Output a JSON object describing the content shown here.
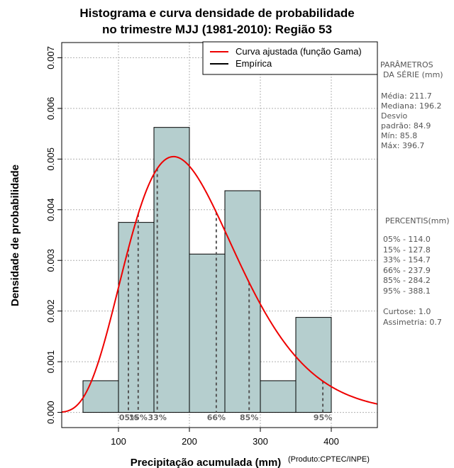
{
  "chart_data": {
    "type": "bar",
    "title_line1": "Histograma e curva densidade de probabilidade",
    "title_line2": "no trimestre MJJ (1981-2010): Região 53",
    "xlabel": "Precipitação acumulada (mm)",
    "ylabel": "Densidade de probabilidade",
    "credit": "(Produto:CPTEC/INPE)",
    "xlim": [
      20,
      465
    ],
    "ylim": [
      -0.0003,
      0.0073
    ],
    "x_ticks": [
      100,
      200,
      300,
      400
    ],
    "y_ticks": [
      0.0,
      0.001,
      0.002,
      0.003,
      0.004,
      0.005,
      0.006,
      0.007
    ],
    "y_tick_labels": [
      "0.000",
      "0.001",
      "0.002",
      "0.003",
      "0.004",
      "0.005",
      "0.006",
      "0.007"
    ],
    "bins": [
      {
        "start": 50,
        "end": 100,
        "density": 0.000625
      },
      {
        "start": 100,
        "end": 150,
        "density": 0.00375
      },
      {
        "start": 150,
        "end": 200,
        "density": 0.005625
      },
      {
        "start": 200,
        "end": 250,
        "density": 0.003125
      },
      {
        "start": 250,
        "end": 300,
        "density": 0.004375
      },
      {
        "start": 300,
        "end": 350,
        "density": 0.000625
      },
      {
        "start": 350,
        "end": 400,
        "density": 0.001875
      }
    ],
    "fitted_curve": {
      "name": "Curva ajustada (função Gama)",
      "distribution": "gamma",
      "mean": 211.7,
      "sd": 84.9
    },
    "legend": [
      {
        "label": "Curva ajustada (função Gama)",
        "color": "#ee0000"
      },
      {
        "label": "Empírica",
        "color": "#000000"
      }
    ],
    "percentiles": [
      {
        "label": "05%",
        "value": 114.0
      },
      {
        "label": "15%",
        "value": 127.8
      },
      {
        "label": "33%",
        "value": 154.7
      },
      {
        "label": "66%",
        "value": 237.9
      },
      {
        "label": "85%",
        "value": 284.2
      },
      {
        "label": "95%",
        "value": 388.1
      }
    ],
    "colors": {
      "bar_fill": "#b5cece",
      "curve": "#ee0000",
      "grid": "#b0b0b0",
      "percentile_line": "#555555"
    }
  },
  "side_panel": {
    "params_title_1": "PARÂMETROS",
    "params_title_2": "DA SÉRIE (mm)",
    "params": [
      "Média:  211.7",
      "Mediana:  196.2",
      "Desvio",
      "padrão:  84.9",
      "Mín:  85.8",
      "Máx:  396.7"
    ],
    "percentis_title": "PERCENTIS(mm)",
    "percentis": [
      "05% -   114.0",
      "15% -   127.8",
      "33% -   154.7",
      "66% -   237.9",
      "85% -   284.2",
      "95% -   388.1"
    ],
    "curtose": "Curtose:  1.0",
    "assimetria": "Assimetria:  0.7"
  }
}
